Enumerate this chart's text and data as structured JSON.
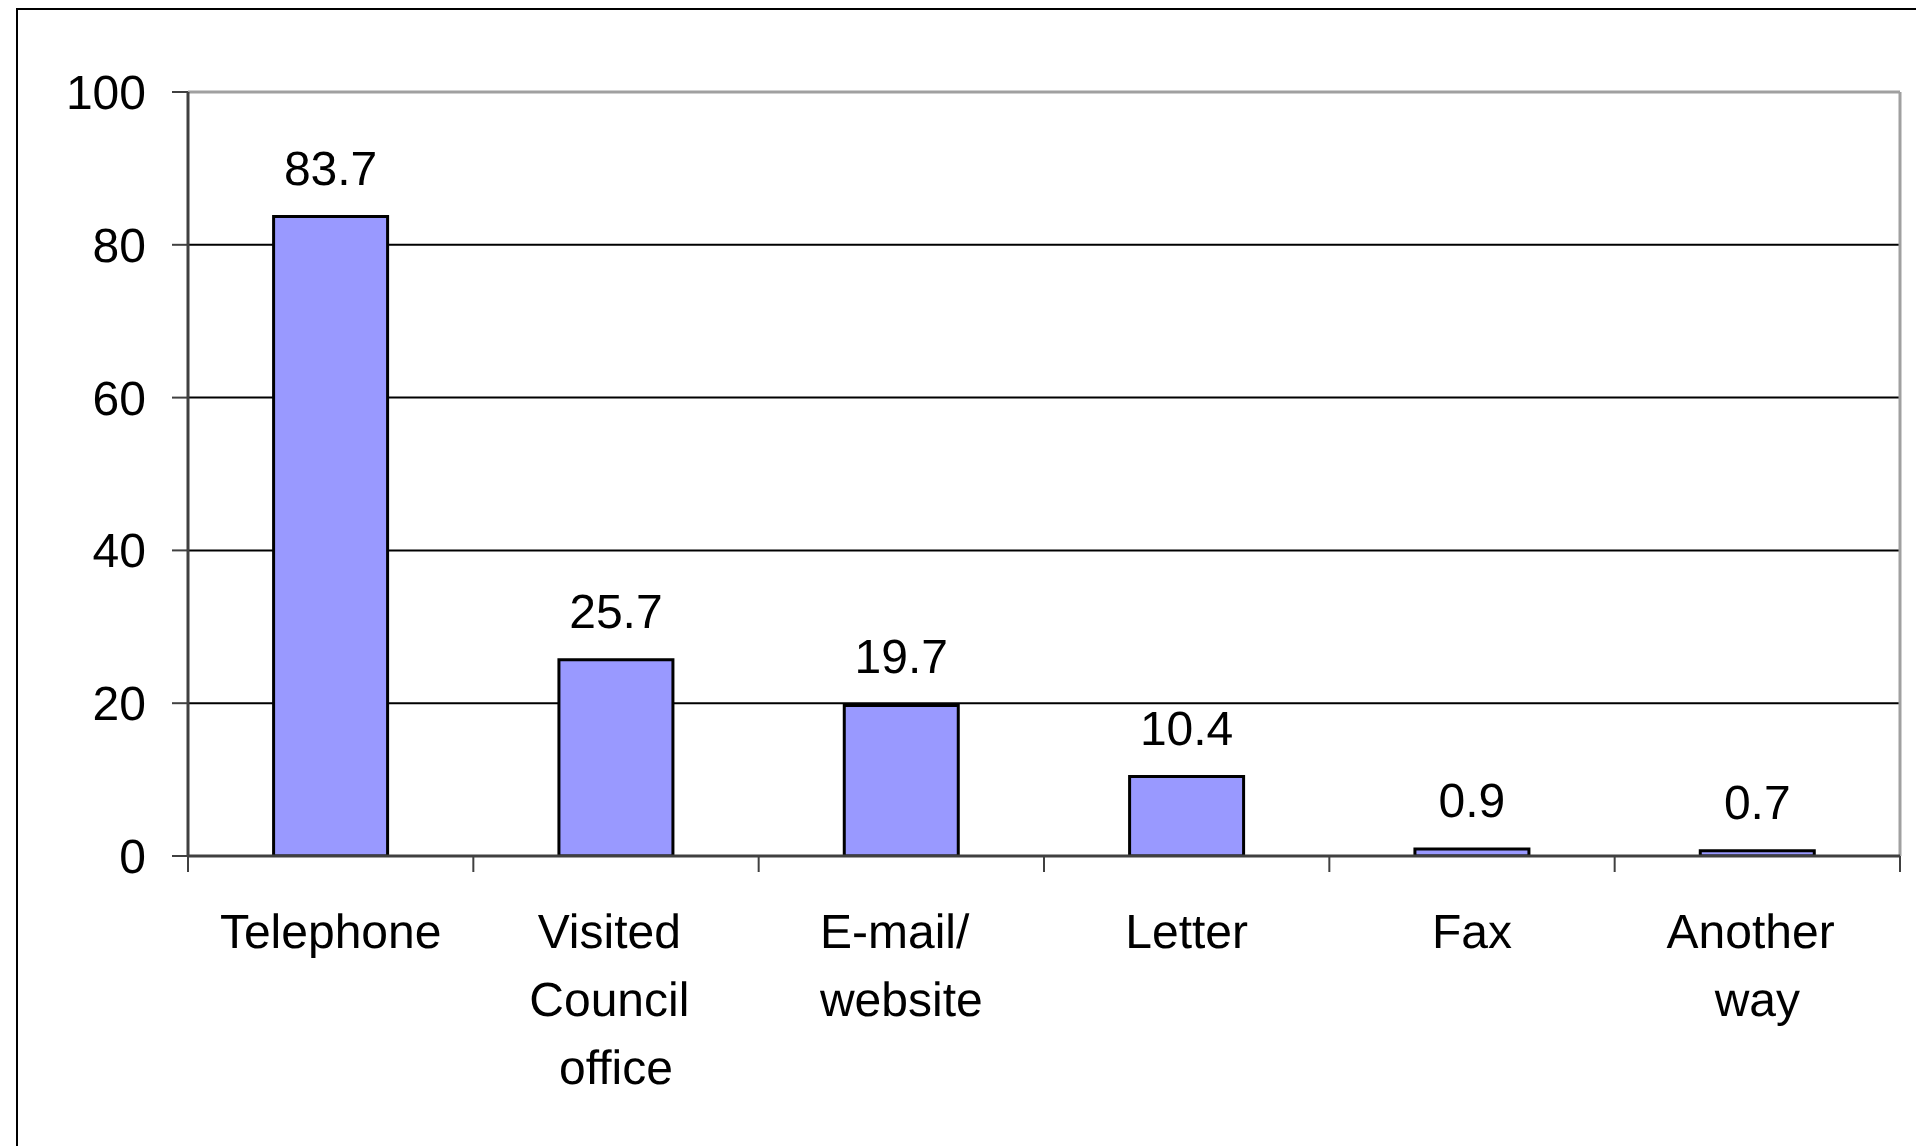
{
  "chart_data": {
    "type": "bar",
    "categories": [
      "Telephone",
      "Visited Council office",
      "E-mail/ website",
      "Letter",
      "Fax",
      "Another way"
    ],
    "values": [
      83.7,
      25.7,
      19.7,
      10.4,
      0.9,
      0.7
    ],
    "color": "#9999ff",
    "ylim": [
      0,
      100
    ],
    "yticks": [
      0,
      20,
      40,
      60,
      80,
      100
    ],
    "grid": "y",
    "data_labels": true
  }
}
